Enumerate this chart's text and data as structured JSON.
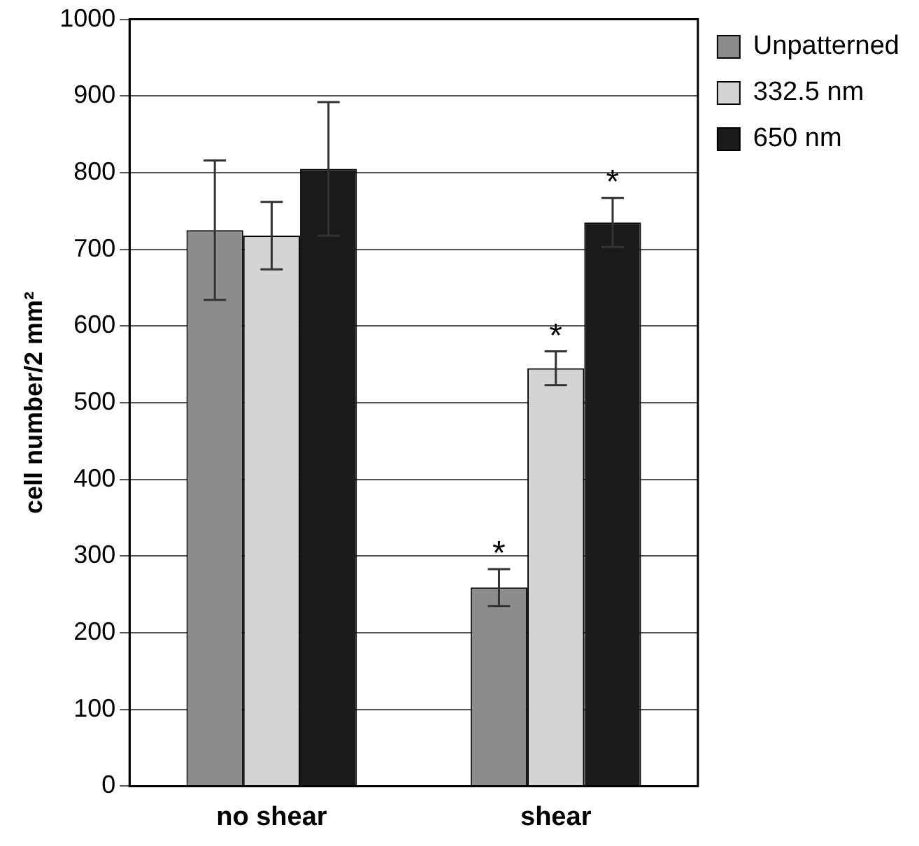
{
  "chart_data": {
    "type": "bar",
    "ylabel": "cell number/2 mm²",
    "categories": [
      "no shear",
      "shear"
    ],
    "series": [
      {
        "name": "Unpatterned",
        "color": "#8c8c8c",
        "values": [
          725,
          259
        ],
        "errors": [
          91,
          24
        ]
      },
      {
        "name": "332.5 nm",
        "color": "#d4d4d4",
        "values": [
          718,
          545
        ],
        "errors": [
          44,
          22
        ]
      },
      {
        "name": "650 nm",
        "color": "#1a1a1a",
        "values": [
          805,
          735
        ],
        "errors": [
          87,
          32
        ]
      }
    ],
    "ylim": [
      0,
      1000
    ],
    "yticks": [
      0,
      100,
      200,
      300,
      400,
      500,
      600,
      700,
      800,
      900,
      1000
    ],
    "grid": "y",
    "legend": "top right",
    "annotations": [
      "*",
      "*",
      "*"
    ]
  }
}
